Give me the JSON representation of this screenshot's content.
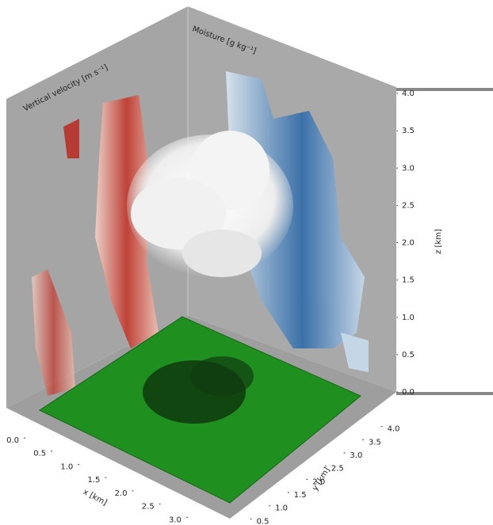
{
  "chart_data": {
    "type": "volume3d",
    "wall_titles": [
      "Vertical velocity [m s⁻¹]",
      "Moisture [g kg⁻¹]"
    ],
    "xlabel": "x [km]",
    "ylabel": "y [km]",
    "zlabel": "z [km]",
    "xlim": [
      0,
      3.5
    ],
    "ylim": [
      0,
      4.2
    ],
    "zlim": [
      0,
      4.0
    ],
    "xticks": [
      {
        "value": 0,
        "label": "0.0"
      },
      0.5,
      {
        "value": 1,
        "label": "1.0"
      },
      1.5,
      {
        "value": 2,
        "label": "2.0"
      },
      2.5,
      {
        "value": 3,
        "label": "3.0"
      }
    ],
    "yticks": [
      0.5,
      {
        "value": 1,
        "label": "1.0"
      },
      1.5,
      {
        "value": 2,
        "label": "2.0"
      },
      2.5,
      {
        "value": 3,
        "label": "3.0"
      },
      3.5,
      {
        "value": 4,
        "label": "4.0"
      }
    ],
    "zticks": [
      {
        "value": 0,
        "label": "0.0"
      },
      0.5,
      {
        "value": 1,
        "label": "1.0"
      },
      1.5,
      {
        "value": 2,
        "label": "2.0"
      },
      2.5,
      {
        "value": 3,
        "label": "3.0"
      },
      3.5,
      {
        "value": 4,
        "label": "4.0"
      }
    ]
  }
}
